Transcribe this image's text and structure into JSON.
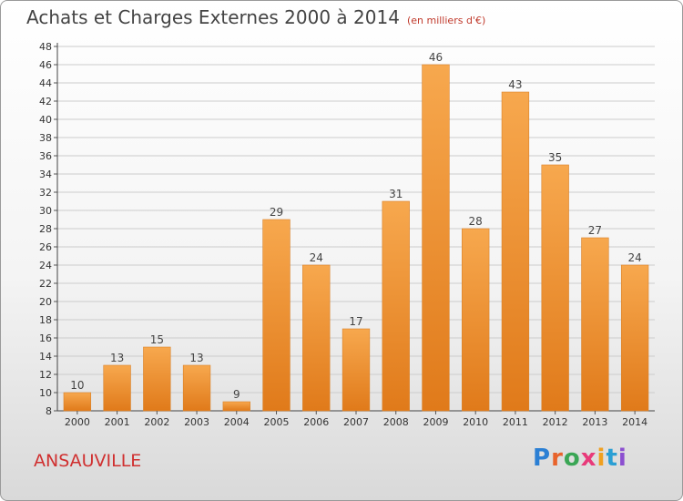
{
  "header": {
    "title": "Achats et Charges Externes 2000 à 2014",
    "unit": "(en milliers d'€)"
  },
  "footer": {
    "place": "ANSAUVILLE",
    "logo_text": "Proxiti"
  },
  "colors": {
    "bar_light": "#f7a84e",
    "bar_dark": "#e07a1a",
    "grid": "#cccccc",
    "logo_letters": [
      "#2b7fd4",
      "#e8632b",
      "#3aa655",
      "#e83a7a",
      "#f0a020",
      "#2b9fd4",
      "#8c4fd0"
    ]
  },
  "chart_data": {
    "type": "bar",
    "title": "Achats et Charges Externes 2000 à 2014",
    "categories": [
      "2000",
      "2001",
      "2002",
      "2003",
      "2004",
      "2005",
      "2006",
      "2007",
      "2008",
      "2009",
      "2010",
      "2011",
      "2012",
      "2013",
      "2014"
    ],
    "values": [
      10,
      13,
      15,
      13,
      9,
      29,
      24,
      17,
      31,
      46,
      28,
      43,
      35,
      27,
      24
    ],
    "ylim": [
      8,
      48
    ],
    "yticks": [
      8,
      10,
      12,
      14,
      16,
      18,
      20,
      22,
      24,
      26,
      28,
      30,
      32,
      34,
      36,
      38,
      40,
      42,
      44,
      46,
      48
    ],
    "grid": true,
    "legend": "none"
  }
}
